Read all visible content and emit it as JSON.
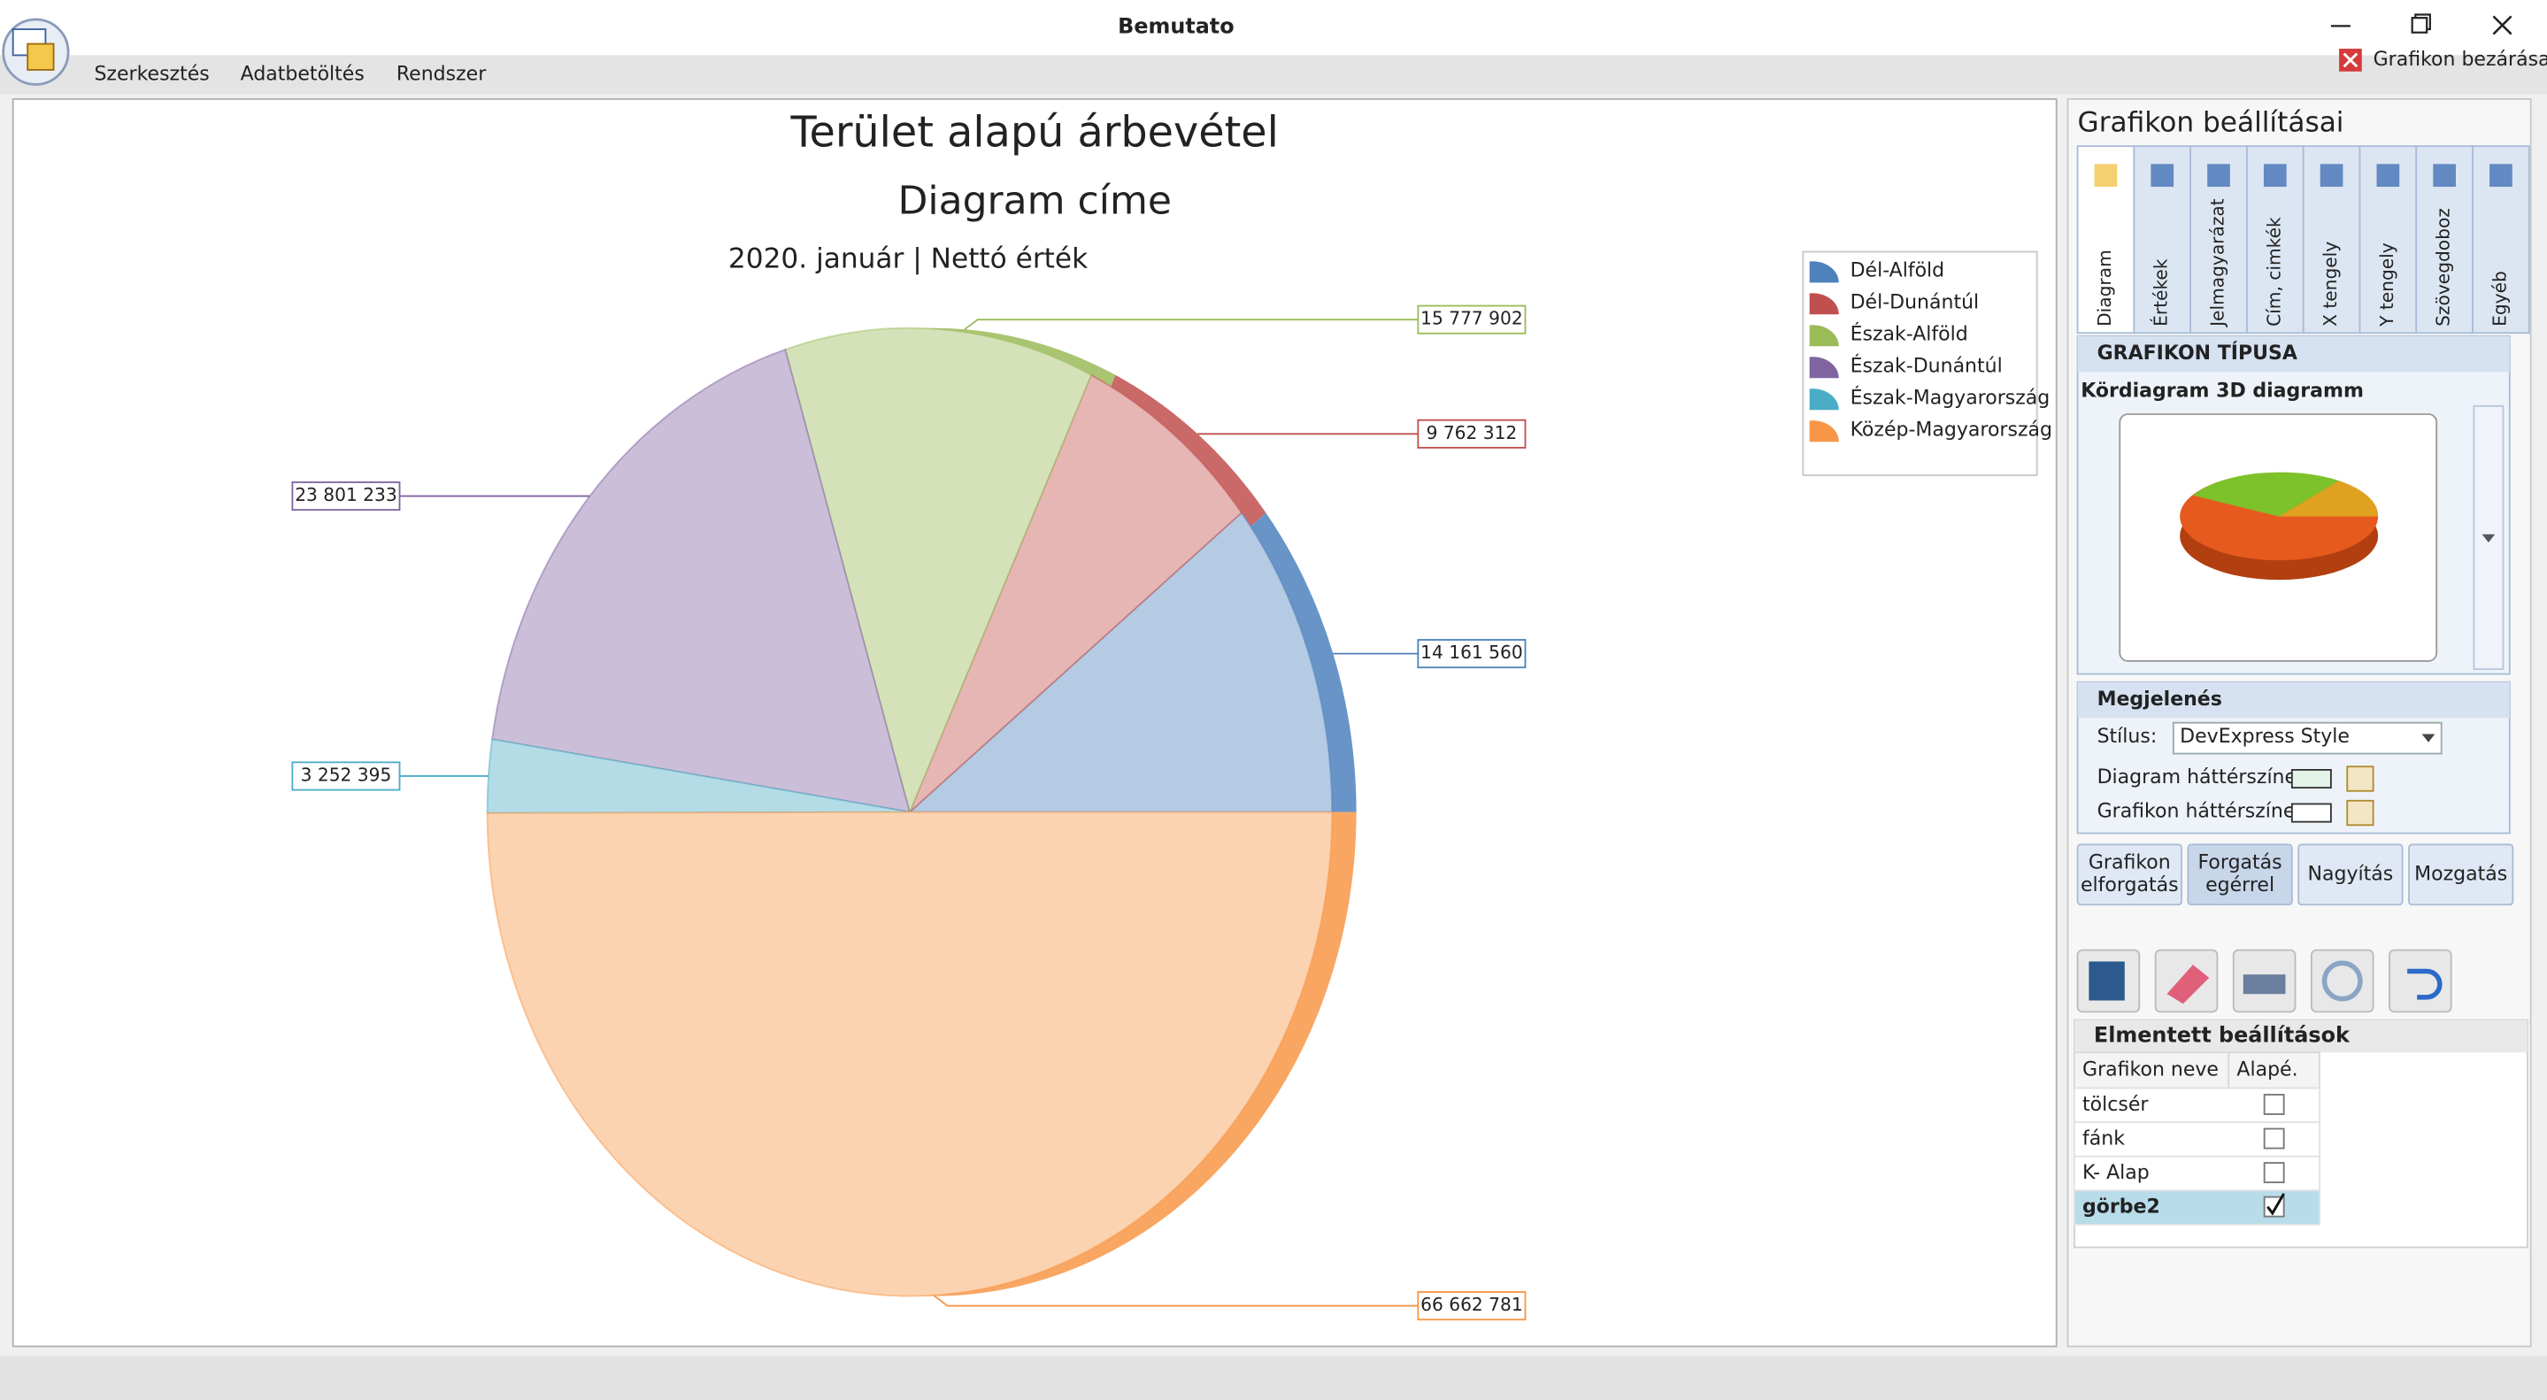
{
  "window": {
    "title": "Bemutato",
    "menu": [
      "Szerkesztés",
      "Adatbetöltés",
      "Rendszer"
    ],
    "close_chart": "Grafikon bezárása"
  },
  "chart_data": {
    "type": "pie",
    "title": "Terület alapú árbevétel",
    "subtitle": "Diagram címe",
    "caption": "2020. január | Nettó érték",
    "categories": [
      "Dél-Alföld",
      "Dél-Dunántúl",
      "Észak-Alföld",
      "Észak-Dunántúl",
      "Észak-Magyarország",
      "Közép-Magyarország"
    ],
    "values": [
      14161560,
      9762312,
      15777902,
      23801233,
      3252395,
      66662781
    ],
    "value_labels": [
      "14 161 560",
      "9 762 312",
      "15 777 902",
      "23 801 233",
      "3 252 395",
      "66 662 781"
    ],
    "colors": [
      "#4f81bd",
      "#c0504d",
      "#9bbb59",
      "#8064a2",
      "#4bacc6",
      "#f79646"
    ],
    "legend": "top-right"
  },
  "settings_panel": {
    "title": "Grafikon beállításai",
    "tabs": [
      "Diagram",
      "Értékek",
      "Jelmagyarázat",
      "Cím, cimkék",
      "X tengely",
      "Y tengely",
      "Szövegdoboz",
      "Egyéb"
    ],
    "chart_type_header": "GRAFIKON TÍPUSA",
    "chart_type": "Kördiagram 3D diagramm",
    "appearance_header": "Megjelenés",
    "style_label": "Stílus:",
    "style_value": "DevExpress Style",
    "diagram_bg": "Diagram háttérszíne:",
    "chart_bg": "Grafikon háttérszíne:",
    "buttons": [
      [
        "Grafikon",
        "elforgatás"
      ],
      [
        "Forgatás",
        "egérrel"
      ],
      [
        "Nagyítás"
      ],
      [
        "Mozgatás"
      ]
    ]
  },
  "saved": {
    "title": "Elmentett beállítások",
    "columns": [
      "Grafikon neve",
      "Alapé."
    ],
    "rows": [
      [
        "tölcsér",
        false
      ],
      [
        "fánk",
        false
      ],
      [
        "K- Alap",
        false
      ],
      [
        "görbe2",
        true
      ]
    ]
  }
}
